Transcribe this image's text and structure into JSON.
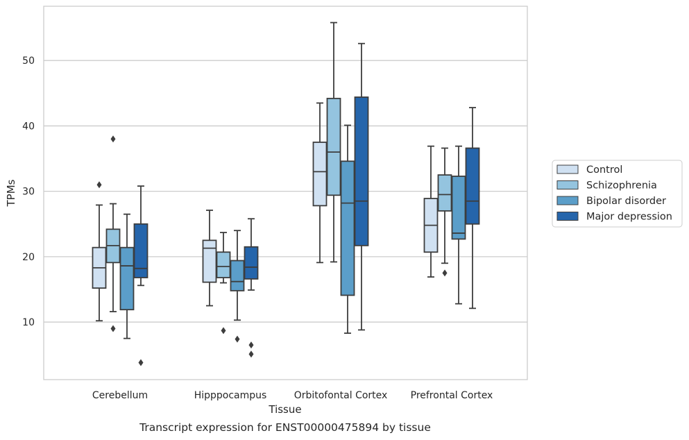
{
  "chart_data": {
    "type": "box",
    "xlabel": "Tissue",
    "ylabel": "TPMs",
    "caption": "Transcript expression for ENST00000475894 by tissue",
    "categories": [
      "Cerebellum",
      "Hipppocampus",
      "Orbitofontal Cortex",
      "Prefrontal Cortex"
    ],
    "ylim": [
      1.2,
      58.3
    ],
    "yticks": [
      10,
      20,
      30,
      40,
      50
    ],
    "grid": true,
    "legend_position": "right",
    "series": [
      {
        "name": "Control",
        "color": "#d0e1f2",
        "boxes": [
          {
            "whislo": 10.2,
            "q1": 15.2,
            "med": 18.3,
            "q3": 21.4,
            "whishi": 27.9,
            "fliers": [
              31.0
            ]
          },
          {
            "whislo": 12.5,
            "q1": 16.1,
            "med": 21.3,
            "q3": 22.5,
            "whishi": 27.1,
            "fliers": []
          },
          {
            "whislo": 19.1,
            "q1": 27.8,
            "med": 33.0,
            "q3": 37.5,
            "whishi": 43.5,
            "fliers": []
          },
          {
            "whislo": 16.9,
            "q1": 20.7,
            "med": 24.8,
            "q3": 28.9,
            "whishi": 36.9,
            "fliers": []
          }
        ]
      },
      {
        "name": "Schizophrenia",
        "color": "#94c4df",
        "boxes": [
          {
            "whislo": 11.6,
            "q1": 19.1,
            "med": 21.7,
            "q3": 24.2,
            "whishi": 28.1,
            "fliers": [
              9.0,
              38.0
            ]
          },
          {
            "whislo": 16.0,
            "q1": 16.8,
            "med": 18.5,
            "q3": 20.7,
            "whishi": 23.7,
            "fliers": [
              8.7
            ]
          },
          {
            "whislo": 19.2,
            "q1": 29.4,
            "med": 36.0,
            "q3": 44.2,
            "whishi": 55.8,
            "fliers": []
          },
          {
            "whislo": 19.0,
            "q1": 27.0,
            "med": 29.5,
            "q3": 32.5,
            "whishi": 36.6,
            "fliers": [
              17.5
            ]
          }
        ]
      },
      {
        "name": "Bipolar disorder",
        "color": "#5b9ec9",
        "boxes": [
          {
            "whislo": 7.5,
            "q1": 11.9,
            "med": 18.6,
            "q3": 21.4,
            "whishi": 26.5,
            "fliers": []
          },
          {
            "whislo": 10.3,
            "q1": 14.8,
            "med": 16.2,
            "q3": 19.4,
            "whishi": 24.0,
            "fliers": [
              7.4
            ]
          },
          {
            "whislo": 8.3,
            "q1": 14.1,
            "med": 28.2,
            "q3": 34.6,
            "whishi": 40.1,
            "fliers": []
          },
          {
            "whislo": 12.8,
            "q1": 22.7,
            "med": 23.6,
            "q3": 32.3,
            "whishi": 36.9,
            "fliers": []
          }
        ]
      },
      {
        "name": "Major depression",
        "color": "#2565ab",
        "boxes": [
          {
            "whislo": 15.6,
            "q1": 16.8,
            "med": 18.2,
            "q3": 25.0,
            "whishi": 30.8,
            "fliers": [
              3.8
            ]
          },
          {
            "whislo": 14.9,
            "q1": 16.6,
            "med": 18.4,
            "q3": 21.5,
            "whishi": 25.8,
            "fliers": [
              6.5,
              5.1
            ]
          },
          {
            "whislo": 8.8,
            "q1": 21.7,
            "med": 28.5,
            "q3": 44.4,
            "whishi": 52.6,
            "fliers": []
          },
          {
            "whislo": 12.1,
            "q1": 25.0,
            "med": 28.5,
            "q3": 36.6,
            "whishi": 42.8,
            "fliers": []
          }
        ]
      }
    ]
  }
}
